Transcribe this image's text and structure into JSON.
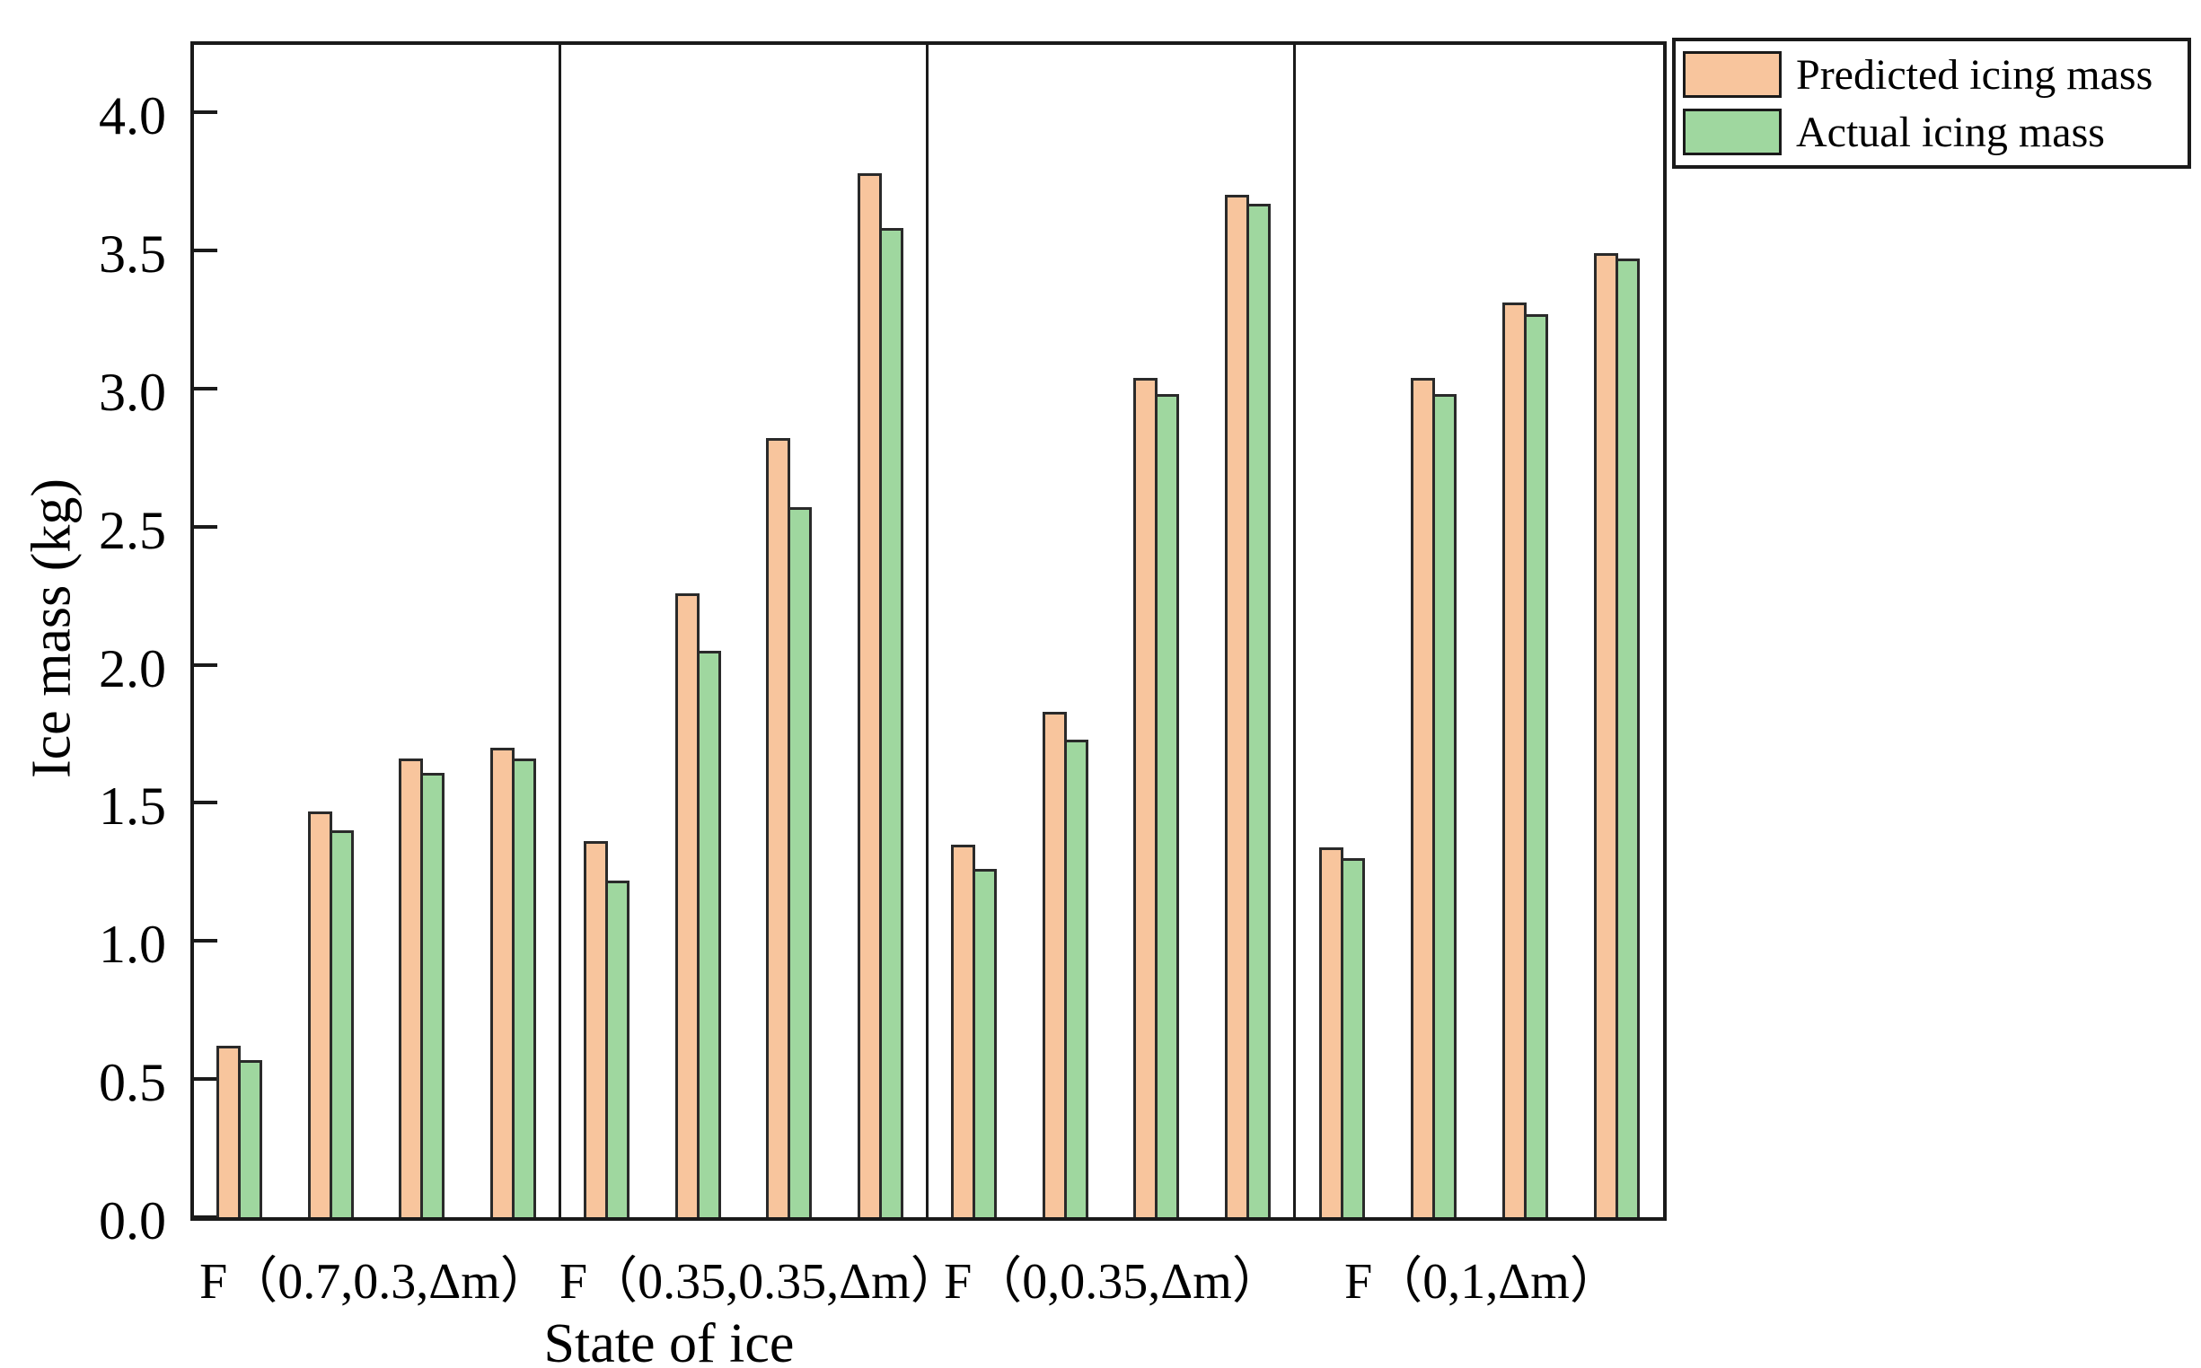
{
  "chart_data": {
    "type": "bar",
    "title": "",
    "xlabel": "State of ice",
    "ylabel": "Ice mass (kg)",
    "ylim": [
      0,
      4.27
    ],
    "y_ticks": [
      "0.0",
      "0.5",
      "1.0",
      "1.5",
      "2.0",
      "2.5",
      "3.0",
      "3.5",
      "4.0"
    ],
    "grid": false,
    "group_dividers": true,
    "legend_position": "outside-top-right",
    "categories": [
      "F（0.7,0.3,Δm）",
      "F（0.35,0.35,Δm）",
      "F（0,0.35,Δm）",
      "F（0,1,Δm）"
    ],
    "series": [
      {
        "name": "Predicted icing mass",
        "color": "#F8C59D",
        "values": [
          [
            0.62,
            1.47,
            1.66,
            1.7
          ],
          [
            1.36,
            2.26,
            2.82,
            3.78
          ],
          [
            1.35,
            1.83,
            3.04,
            3.7
          ],
          [
            1.34,
            3.04,
            3.31,
            3.49
          ]
        ]
      },
      {
        "name": "Actual icing mass",
        "color": "#9FD79F",
        "values": [
          [
            0.57,
            1.4,
            1.61,
            1.66
          ],
          [
            1.22,
            2.05,
            2.57,
            3.58
          ],
          [
            1.26,
            1.73,
            2.98,
            3.67
          ],
          [
            1.3,
            2.98,
            3.27,
            3.47
          ]
        ]
      }
    ]
  }
}
